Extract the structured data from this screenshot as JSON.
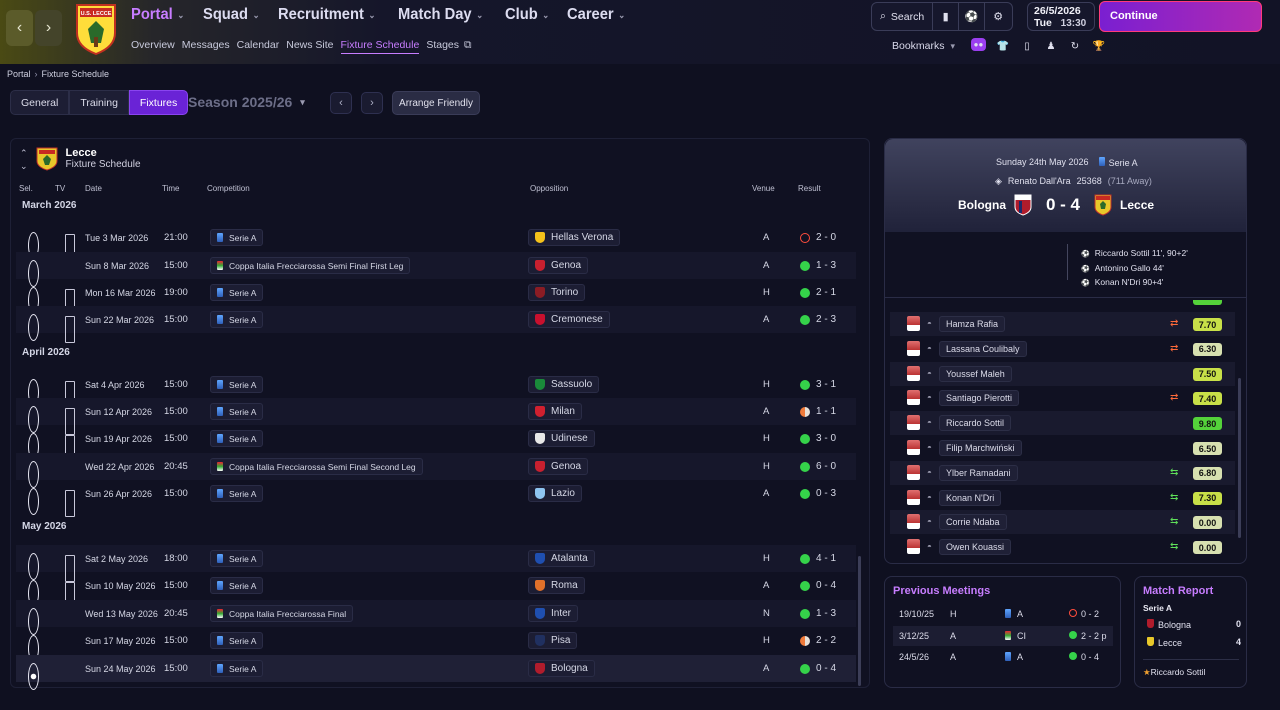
{
  "nav": {
    "main": [
      {
        "label": "Portal",
        "active": true
      },
      {
        "label": "Squad"
      },
      {
        "label": "Recruitment"
      },
      {
        "label": "Match Day"
      },
      {
        "label": "Club"
      },
      {
        "label": "Career"
      }
    ],
    "sub": [
      "Overview",
      "Messages",
      "Calendar",
      "News Site",
      "Fixture Schedule",
      "Stages"
    ],
    "search_label": "Search",
    "date": "26/5/2026",
    "day": "Tue",
    "time": "13:30",
    "continue_label": "Continue",
    "bookmarks_label": "Bookmarks",
    "crest_text": "U.S. LECCE"
  },
  "breadcrumb": {
    "root": "Portal",
    "current": "Fixture Schedule"
  },
  "tabs": [
    "General",
    "Training",
    "Fixtures"
  ],
  "season": "Season 2025/26",
  "arrange_label": "Arrange Friendly",
  "team": {
    "name": "Lecce",
    "subtitle": "Fixture Schedule"
  },
  "columns": {
    "sel": "Sel.",
    "tv": "TV",
    "date": "Date",
    "time": "Time",
    "competition": "Competition",
    "opposition": "Opposition",
    "venue": "Venue",
    "result": "Result"
  },
  "months": [
    "March 2026",
    "April 2026",
    "May 2026"
  ],
  "fixtures": [
    {
      "date": "Tue 3 Mar 2026",
      "time": "21:00",
      "comp": "Serie A",
      "opp": "Hellas Verona",
      "venue": "A",
      "result": "2 - 0",
      "out": "l",
      "tv": true,
      "badge": "#f5c21b"
    },
    {
      "date": "Sun 8 Mar 2026",
      "time": "15:00",
      "comp": "Coppa Italia Frecciarossa Semi Final First Leg",
      "opp": "Genoa",
      "venue": "A",
      "result": "1 - 3",
      "out": "w",
      "tv": false,
      "badge": "#c8202f"
    },
    {
      "date": "Mon 16 Mar 2026",
      "time": "19:00",
      "comp": "Serie A",
      "opp": "Torino",
      "venue": "H",
      "result": "2 - 1",
      "out": "w",
      "tv": true,
      "badge": "#8b1c24"
    },
    {
      "date": "Sun 22 Mar 2026",
      "time": "15:00",
      "comp": "Serie A",
      "opp": "Cremonese",
      "venue": "A",
      "result": "2 - 3",
      "out": "w",
      "tv": true,
      "badge": "#c8102e"
    },
    {
      "date": "Sat 4 Apr 2026",
      "time": "15:00",
      "comp": "Serie A",
      "opp": "Sassuolo",
      "venue": "H",
      "result": "3 - 1",
      "out": "w",
      "tv": true,
      "badge": "#1a8a3a"
    },
    {
      "date": "Sun 12 Apr 2026",
      "time": "15:00",
      "comp": "Serie A",
      "opp": "Milan",
      "venue": "A",
      "result": "1 - 1",
      "out": "d",
      "tv": true,
      "badge": "#d0202f"
    },
    {
      "date": "Sun 19 Apr 2026",
      "time": "15:00",
      "comp": "Serie A",
      "opp": "Udinese",
      "venue": "H",
      "result": "3 - 0",
      "out": "w",
      "tv": true,
      "badge": "#e8e8e8"
    },
    {
      "date": "Wed 22 Apr 2026",
      "time": "20:45",
      "comp": "Coppa Italia Frecciarossa Semi Final Second Leg",
      "opp": "Genoa",
      "venue": "H",
      "result": "6 - 0",
      "out": "w",
      "tv": false,
      "badge": "#c8202f"
    },
    {
      "date": "Sun 26 Apr 2026",
      "time": "15:00",
      "comp": "Serie A",
      "opp": "Lazio",
      "venue": "A",
      "result": "0 - 3",
      "out": "w",
      "tv": true,
      "badge": "#8ec5f0"
    },
    {
      "date": "Sat 2 May 2026",
      "time": "18:00",
      "comp": "Serie A",
      "opp": "Atalanta",
      "venue": "H",
      "result": "4 - 1",
      "out": "w",
      "tv": true,
      "badge": "#1f4fb0"
    },
    {
      "date": "Sun 10 May 2026",
      "time": "15:00",
      "comp": "Serie A",
      "opp": "Roma",
      "venue": "A",
      "result": "0 - 4",
      "out": "w",
      "tv": true,
      "badge": "#e0702a"
    },
    {
      "date": "Wed 13 May 2026",
      "time": "20:45",
      "comp": "Coppa Italia Frecciarossa Final",
      "opp": "Inter",
      "venue": "N",
      "result": "1 - 3",
      "out": "w",
      "tv": false,
      "badge": "#1f4fb0"
    },
    {
      "date": "Sun 17 May 2026",
      "time": "15:00",
      "comp": "Serie A",
      "opp": "Pisa",
      "venue": "H",
      "result": "2 - 2",
      "out": "d",
      "tv": false,
      "badge": "#203060"
    },
    {
      "date": "Sun 24 May 2026",
      "time": "15:00",
      "comp": "Serie A",
      "opp": "Bologna",
      "venue": "A",
      "result": "0 - 4",
      "out": "w",
      "tv": false,
      "badge": "#b01c2c",
      "selected": true
    }
  ],
  "match": {
    "date": "Sunday 24th May 2026",
    "comp": "Serie A",
    "stadium": "Renato Dall'Ara",
    "attendance": "25368",
    "away": "(711 Away)",
    "home": "Bologna",
    "away_team": "Lecce",
    "score": "0 - 4",
    "scorers": [
      "Riccardo Sottil 11', 90+2'",
      "Antonino Gallo 44'",
      "Konan N'Dri 90+4'"
    ]
  },
  "players": [
    {
      "name": "Hamza Rafia",
      "rating": "7.70",
      "sub": "out",
      "tone": "g1"
    },
    {
      "name": "Lassana Coulibaly",
      "rating": "6.30",
      "sub": "out",
      "tone": "g2"
    },
    {
      "name": "Youssef Maleh",
      "rating": "7.50",
      "sub": "",
      "tone": "g1"
    },
    {
      "name": "Santiago Pierotti",
      "rating": "7.40",
      "sub": "out",
      "tone": "g1"
    },
    {
      "name": "Riccardo Sottil",
      "rating": "9.80",
      "sub": "",
      "tone": "g3"
    },
    {
      "name": "Filip Marchwiński",
      "rating": "6.50",
      "sub": "",
      "tone": "g2"
    },
    {
      "name": "Ylber Ramadani",
      "rating": "6.80",
      "sub": "in",
      "tone": "g2"
    },
    {
      "name": "Konan N'Dri",
      "rating": "7.30",
      "sub": "in",
      "tone": "g1"
    },
    {
      "name": "Corrie Ndaba",
      "rating": "0.00",
      "sub": "in",
      "tone": "g2"
    },
    {
      "name": "Owen Kouassi",
      "rating": "0.00",
      "sub": "in",
      "tone": "g2"
    }
  ],
  "previous": {
    "title": "Previous Meetings",
    "rows": [
      {
        "date": "19/10/25",
        "venue": "H",
        "comp": "A",
        "result": "0 - 2",
        "out": "l"
      },
      {
        "date": "3/12/25",
        "venue": "A",
        "comp": "CI",
        "result": "2 - 2 p",
        "out": "w"
      },
      {
        "date": "24/5/26",
        "venue": "A",
        "comp": "A",
        "result": "0 - 4",
        "out": "w"
      }
    ]
  },
  "report": {
    "title": "Match Report",
    "comp": "Serie A",
    "rows": [
      {
        "team": "Bologna",
        "goals": "0"
      },
      {
        "team": "Lecce",
        "goals": "4"
      }
    ],
    "motm": "Riccardo Sottil"
  }
}
